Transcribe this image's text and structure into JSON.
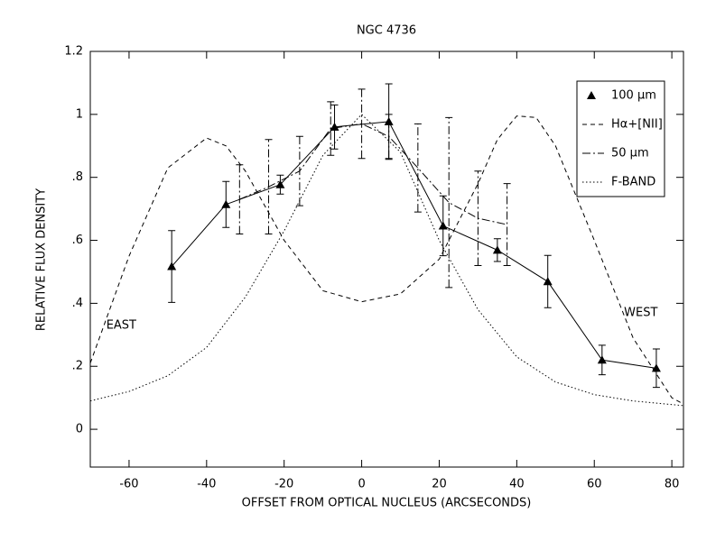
{
  "chart_data": {
    "type": "line",
    "title": "NGC 4736",
    "xlabel": "OFFSET FROM OPTICAL NUCLEUS (ARCSECONDS)",
    "ylabel": "RELATIVE FLUX DENSITY",
    "xlim": [
      -70,
      83
    ],
    "ylim": [
      -0.12,
      1.2
    ],
    "xticks": [
      -60,
      -40,
      -20,
      0,
      20,
      40,
      60,
      80
    ],
    "yticks": [
      {
        "value": 0,
        "label": "0"
      },
      {
        "value": 0.2,
        "label": ".2"
      },
      {
        "value": 0.4,
        "label": ".4"
      },
      {
        "value": 0.6,
        "label": ".6"
      },
      {
        "value": 0.8,
        "label": ".8"
      },
      1,
      1.2
    ],
    "legend": "upper right",
    "annotations": [
      {
        "text": "EAST",
        "x": -62,
        "y": 0.33
      },
      {
        "text": "WEST",
        "x": 72,
        "y": 0.37
      }
    ],
    "series": [
      {
        "name": "100 μm",
        "color": "#000000",
        "style": "solid",
        "marker": "triangle",
        "x": [
          -49,
          -35,
          -21,
          -7,
          7,
          21,
          35,
          48,
          62,
          76
        ],
        "values": [
          0.517,
          0.714,
          0.777,
          0.96,
          0.977,
          0.646,
          0.569,
          0.469,
          0.22,
          0.194
        ],
        "errors": [
          0.114,
          0.073,
          0.03,
          0.07,
          0.12,
          0.095,
          0.036,
          0.083,
          0.047,
          0.061
        ]
      },
      {
        "name": "Hα+[NII]",
        "color": "#000000",
        "style": "dashed",
        "x": [
          -70,
          -60,
          -50,
          -40,
          -35,
          -30,
          -20,
          -10,
          0,
          10,
          20,
          30,
          35,
          40,
          45,
          50,
          60,
          70,
          80,
          83
        ],
        "values": [
          0.21,
          0.55,
          0.83,
          0.925,
          0.9,
          0.82,
          0.6,
          0.44,
          0.405,
          0.43,
          0.54,
          0.78,
          0.92,
          0.995,
          0.99,
          0.9,
          0.6,
          0.29,
          0.1,
          0.08
        ]
      },
      {
        "name": "50 μm",
        "color": "#000000",
        "style": "dashdot",
        "x": [
          -31.5,
          -24,
          -16,
          -8,
          0,
          7,
          14.5,
          22.5,
          30,
          37.5
        ],
        "values": [
          0.73,
          0.77,
          0.82,
          0.955,
          0.97,
          0.93,
          0.83,
          0.72,
          0.67,
          0.65
        ],
        "errors": [
          0.11,
          0.15,
          0.11,
          0.085,
          0.11,
          0.07,
          0.14,
          0.27,
          0.15,
          0.13
        ]
      },
      {
        "name": "F-BAND",
        "color": "#000000",
        "style": "dotted",
        "x": [
          -70,
          -60,
          -50,
          -40,
          -30,
          -20,
          -10,
          0,
          10,
          20,
          30,
          40,
          50,
          60,
          70,
          83
        ],
        "values": [
          0.09,
          0.12,
          0.17,
          0.26,
          0.42,
          0.63,
          0.87,
          1.0,
          0.88,
          0.6,
          0.38,
          0.23,
          0.15,
          0.11,
          0.09,
          0.075
        ]
      }
    ]
  }
}
